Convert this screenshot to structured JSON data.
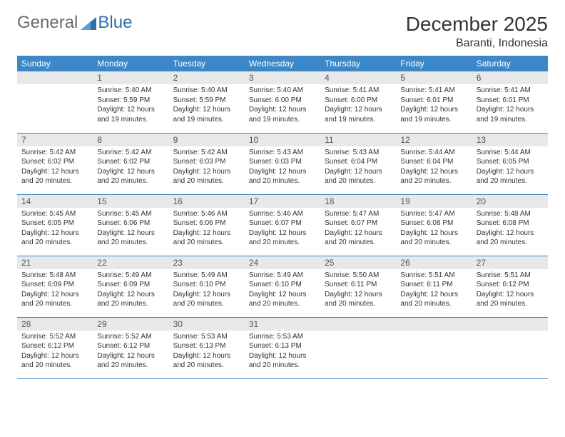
{
  "logo": {
    "text1": "General",
    "text2": "Blue",
    "triangle_color": "#2f6fa8"
  },
  "title": "December 2025",
  "location": "Baranti, Indonesia",
  "colors": {
    "header_bg": "#3b87c8",
    "header_text": "#ffffff",
    "daynum_bg": "#e8e8e8",
    "row_border": "#3b87c8",
    "body_text": "#333333"
  },
  "day_headers": [
    "Sunday",
    "Monday",
    "Tuesday",
    "Wednesday",
    "Thursday",
    "Friday",
    "Saturday"
  ],
  "weeks": [
    [
      null,
      {
        "n": "1",
        "sunrise": "5:40 AM",
        "sunset": "5:59 PM",
        "daylight": "12 hours and 19 minutes."
      },
      {
        "n": "2",
        "sunrise": "5:40 AM",
        "sunset": "5:59 PM",
        "daylight": "12 hours and 19 minutes."
      },
      {
        "n": "3",
        "sunrise": "5:40 AM",
        "sunset": "6:00 PM",
        "daylight": "12 hours and 19 minutes."
      },
      {
        "n": "4",
        "sunrise": "5:41 AM",
        "sunset": "6:00 PM",
        "daylight": "12 hours and 19 minutes."
      },
      {
        "n": "5",
        "sunrise": "5:41 AM",
        "sunset": "6:01 PM",
        "daylight": "12 hours and 19 minutes."
      },
      {
        "n": "6",
        "sunrise": "5:41 AM",
        "sunset": "6:01 PM",
        "daylight": "12 hours and 19 minutes."
      }
    ],
    [
      {
        "n": "7",
        "sunrise": "5:42 AM",
        "sunset": "6:02 PM",
        "daylight": "12 hours and 20 minutes."
      },
      {
        "n": "8",
        "sunrise": "5:42 AM",
        "sunset": "6:02 PM",
        "daylight": "12 hours and 20 minutes."
      },
      {
        "n": "9",
        "sunrise": "5:42 AM",
        "sunset": "6:03 PM",
        "daylight": "12 hours and 20 minutes."
      },
      {
        "n": "10",
        "sunrise": "5:43 AM",
        "sunset": "6:03 PM",
        "daylight": "12 hours and 20 minutes."
      },
      {
        "n": "11",
        "sunrise": "5:43 AM",
        "sunset": "6:04 PM",
        "daylight": "12 hours and 20 minutes."
      },
      {
        "n": "12",
        "sunrise": "5:44 AM",
        "sunset": "6:04 PM",
        "daylight": "12 hours and 20 minutes."
      },
      {
        "n": "13",
        "sunrise": "5:44 AM",
        "sunset": "6:05 PM",
        "daylight": "12 hours and 20 minutes."
      }
    ],
    [
      {
        "n": "14",
        "sunrise": "5:45 AM",
        "sunset": "6:05 PM",
        "daylight": "12 hours and 20 minutes."
      },
      {
        "n": "15",
        "sunrise": "5:45 AM",
        "sunset": "6:06 PM",
        "daylight": "12 hours and 20 minutes."
      },
      {
        "n": "16",
        "sunrise": "5:46 AM",
        "sunset": "6:06 PM",
        "daylight": "12 hours and 20 minutes."
      },
      {
        "n": "17",
        "sunrise": "5:46 AM",
        "sunset": "6:07 PM",
        "daylight": "12 hours and 20 minutes."
      },
      {
        "n": "18",
        "sunrise": "5:47 AM",
        "sunset": "6:07 PM",
        "daylight": "12 hours and 20 minutes."
      },
      {
        "n": "19",
        "sunrise": "5:47 AM",
        "sunset": "6:08 PM",
        "daylight": "12 hours and 20 minutes."
      },
      {
        "n": "20",
        "sunrise": "5:48 AM",
        "sunset": "6:08 PM",
        "daylight": "12 hours and 20 minutes."
      }
    ],
    [
      {
        "n": "21",
        "sunrise": "5:48 AM",
        "sunset": "6:09 PM",
        "daylight": "12 hours and 20 minutes."
      },
      {
        "n": "22",
        "sunrise": "5:49 AM",
        "sunset": "6:09 PM",
        "daylight": "12 hours and 20 minutes."
      },
      {
        "n": "23",
        "sunrise": "5:49 AM",
        "sunset": "6:10 PM",
        "daylight": "12 hours and 20 minutes."
      },
      {
        "n": "24",
        "sunrise": "5:49 AM",
        "sunset": "6:10 PM",
        "daylight": "12 hours and 20 minutes."
      },
      {
        "n": "25",
        "sunrise": "5:50 AM",
        "sunset": "6:11 PM",
        "daylight": "12 hours and 20 minutes."
      },
      {
        "n": "26",
        "sunrise": "5:51 AM",
        "sunset": "6:11 PM",
        "daylight": "12 hours and 20 minutes."
      },
      {
        "n": "27",
        "sunrise": "5:51 AM",
        "sunset": "6:12 PM",
        "daylight": "12 hours and 20 minutes."
      }
    ],
    [
      {
        "n": "28",
        "sunrise": "5:52 AM",
        "sunset": "6:12 PM",
        "daylight": "12 hours and 20 minutes."
      },
      {
        "n": "29",
        "sunrise": "5:52 AM",
        "sunset": "6:12 PM",
        "daylight": "12 hours and 20 minutes."
      },
      {
        "n": "30",
        "sunrise": "5:53 AM",
        "sunset": "6:13 PM",
        "daylight": "12 hours and 20 minutes."
      },
      {
        "n": "31",
        "sunrise": "5:53 AM",
        "sunset": "6:13 PM",
        "daylight": "12 hours and 20 minutes."
      },
      null,
      null,
      null
    ]
  ],
  "labels": {
    "sunrise": "Sunrise:",
    "sunset": "Sunset:",
    "daylight": "Daylight:"
  }
}
